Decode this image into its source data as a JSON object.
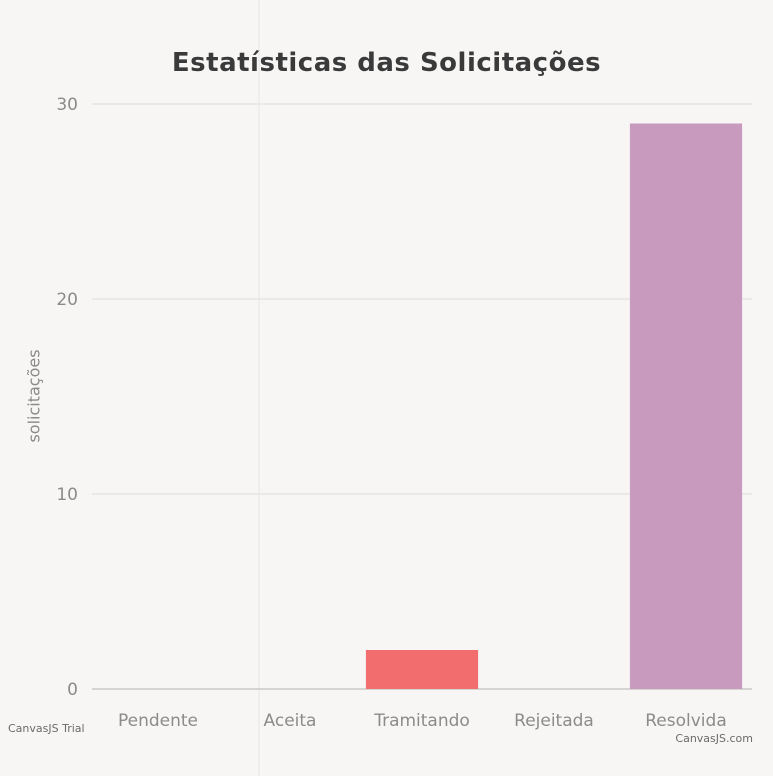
{
  "chart_data": {
    "type": "bar",
    "title": "Estatísticas das Solicitações",
    "ylabel": "solicitações",
    "xlabel": "",
    "categories": [
      "Pendente",
      "Aceita",
      "Tramitando",
      "Rejeitada",
      "Resolvida"
    ],
    "values": [
      0,
      0,
      2,
      0,
      29
    ],
    "ylim": [
      0,
      30
    ],
    "y_ticks": [
      0,
      10,
      20,
      30
    ],
    "grid": true,
    "colors": [
      "#4f81bc",
      "#c0504e",
      "#f26d6d",
      "#9bbb58",
      "#c89bbe"
    ]
  },
  "watermarks": {
    "left": "CanvasJS Trial",
    "right": "CanvasJS.com"
  }
}
